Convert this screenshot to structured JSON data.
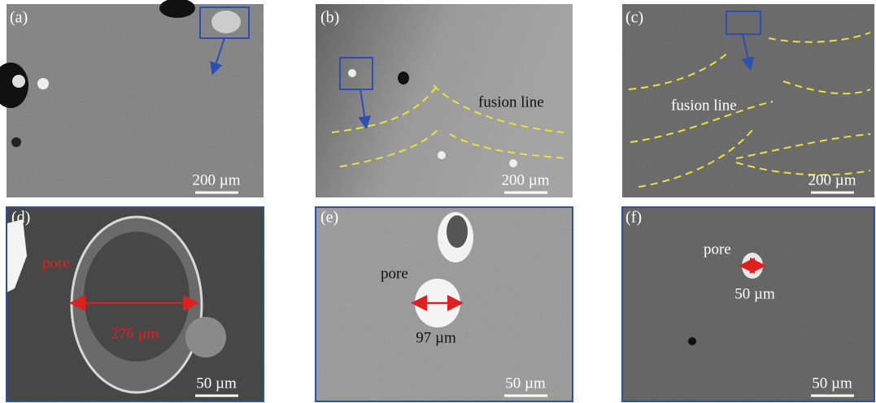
{
  "panels": [
    {
      "label": "(a)",
      "scale_bar": "200 µm"
    },
    {
      "label": "(b)",
      "annotation": "fusion line",
      "scale_bar": "200 µm"
    },
    {
      "label": "(c)",
      "annotation": "fusion line",
      "scale_bar": "200 µm"
    },
    {
      "label": "(d)",
      "annotation": "pore",
      "measurement": "276 µm",
      "scale_bar": "50 µm"
    },
    {
      "label": "(e)",
      "annotation": "pore",
      "measurement": "97 µm",
      "scale_bar": "50 µm"
    },
    {
      "label": "(f)",
      "annotation": "pore",
      "measurement": "50 µm",
      "scale_bar": "50 µm"
    }
  ]
}
